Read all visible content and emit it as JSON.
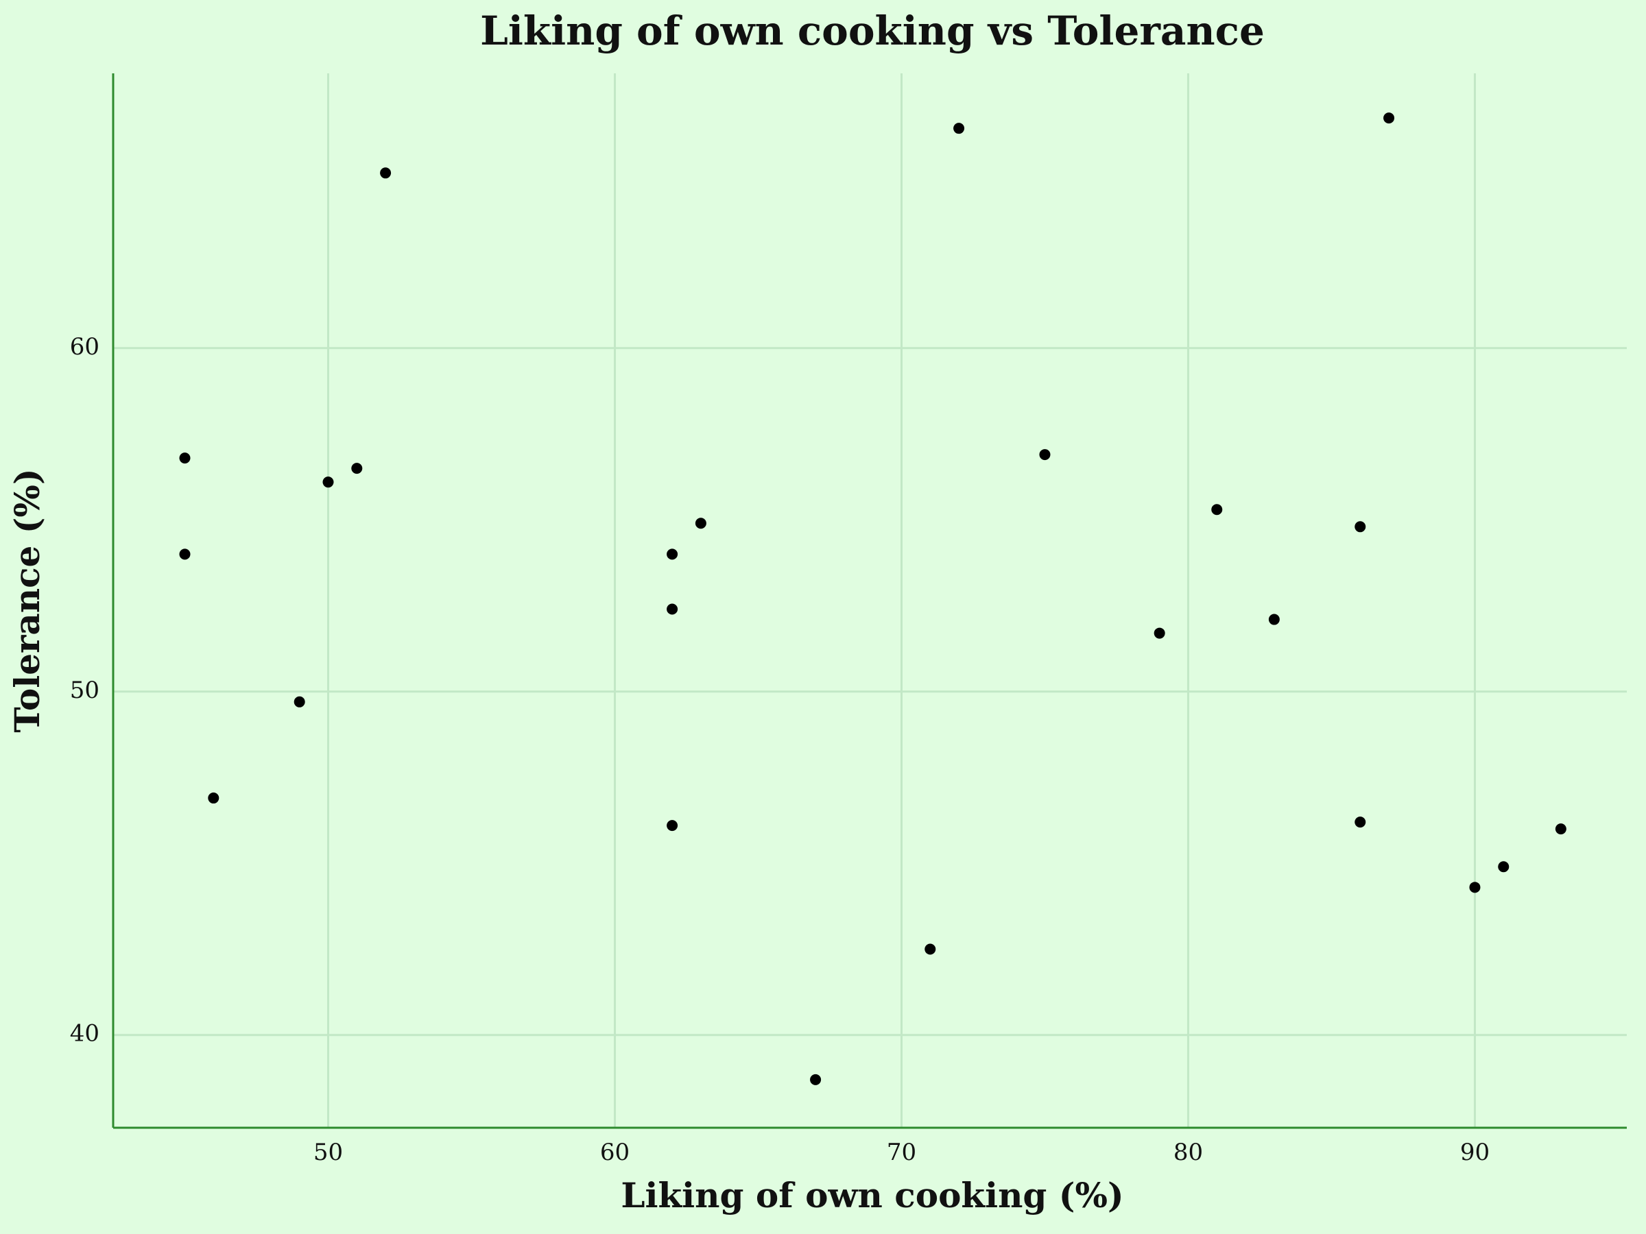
{
  "chart_data": {
    "type": "scatter",
    "title": "Liking of own cooking vs Tolerance",
    "x_label": "Liking of own cooking (%)",
    "y_label": "Tolerance (%)",
    "x": [
      45,
      45,
      46,
      49,
      50,
      51,
      52,
      62,
      62,
      62,
      63,
      67,
      71,
      72,
      75,
      79,
      81,
      83,
      86,
      86,
      87,
      90,
      91,
      93
    ],
    "values": [
      56.8,
      54.0,
      46.9,
      49.7,
      56.1,
      56.5,
      65.1,
      54.0,
      52.4,
      46.1,
      54.9,
      38.7,
      42.5,
      66.4,
      56.9,
      51.7,
      55.3,
      52.1,
      54.8,
      46.2,
      66.7,
      44.3,
      44.9,
      46.0
    ],
    "color": "#000000",
    "xlim": [
      42.5,
      95.3
    ],
    "ylim": [
      37.3,
      68.0
    ],
    "xticks": [
      50,
      60,
      70,
      80,
      90
    ],
    "yticks": [
      40,
      50,
      60
    ],
    "grid": true
  }
}
